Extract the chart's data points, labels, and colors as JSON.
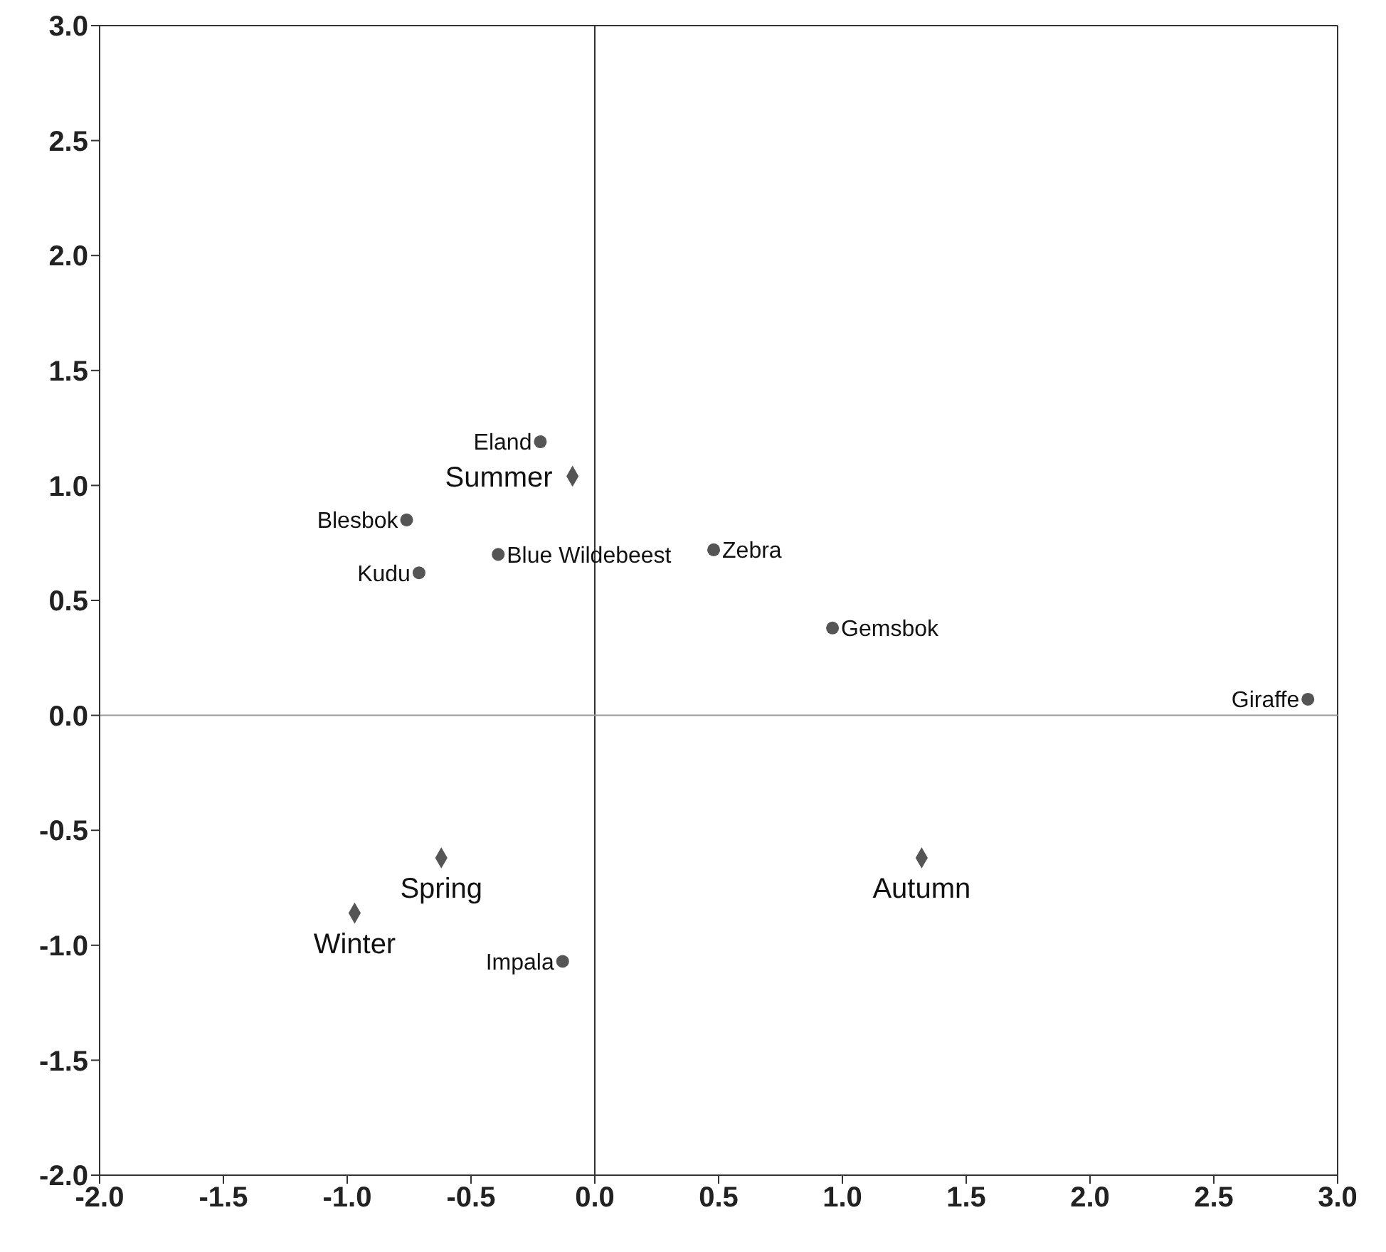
{
  "chart_data": {
    "type": "scatter",
    "xlim": [
      -2.0,
      3.0
    ],
    "ylim": [
      -2.0,
      3.0
    ],
    "xticks": [
      {
        "value": -2,
        "label": "-2.0"
      },
      {
        "value": -1.5,
        "label": "-1.5"
      },
      {
        "value": -1,
        "label": "-1.0"
      },
      {
        "value": -0.5,
        "label": "-0.5"
      },
      {
        "value": 0,
        "label": "0.0"
      },
      {
        "value": 0.5,
        "label": "0.5"
      },
      {
        "value": 1,
        "label": "1.0"
      },
      {
        "value": 1.5,
        "label": "1.5"
      },
      {
        "value": 2,
        "label": "2.0"
      },
      {
        "value": 2.5,
        "label": "2.5"
      },
      {
        "value": 3,
        "label": "3.0"
      }
    ],
    "yticks": [
      {
        "value": -2,
        "label": "-2.0"
      },
      {
        "value": -1.5,
        "label": "-1.5"
      },
      {
        "value": -1,
        "label": "-1.0"
      },
      {
        "value": -0.5,
        "label": "-0.5"
      },
      {
        "value": 0,
        "label": "0.0"
      },
      {
        "value": 0.5,
        "label": "0.5"
      },
      {
        "value": 1,
        "label": "1.0"
      },
      {
        "value": 1.5,
        "label": "1.5"
      },
      {
        "value": 2,
        "label": "2.0"
      },
      {
        "value": 2.5,
        "label": "2.5"
      },
      {
        "value": 3,
        "label": "3.0"
      }
    ],
    "grid": false,
    "legend": false,
    "series": [
      {
        "color": "#555555",
        "marker": "circle",
        "x": [
          -0.22,
          -0.76,
          -0.71,
          -0.39,
          0.48,
          0.96,
          2.88,
          -0.13
        ],
        "values": [
          1.19,
          0.85,
          0.62,
          0.7,
          0.72,
          0.38,
          0.07,
          -1.07
        ]
      },
      {
        "color": "#555555",
        "marker": "diamond",
        "x": [
          -0.09,
          -0.62,
          -0.97,
          1.32
        ],
        "values": [
          1.04,
          -0.62,
          -0.86,
          -0.62
        ]
      }
    ],
    "ref_lines": [
      {
        "axis": "x",
        "value": 0,
        "color": "#333333"
      },
      {
        "axis": "y",
        "value": 0,
        "color": "#999999"
      }
    ],
    "annotations": [
      {
        "text": "Eland",
        "x": -0.22,
        "y": 1.19
      },
      {
        "text": "Blesbok",
        "x": -0.76,
        "y": 0.85
      },
      {
        "text": "Kudu",
        "x": -0.71,
        "y": 0.62
      },
      {
        "text": "Blue Wildebeest",
        "x": -0.39,
        "y": 0.7
      },
      {
        "text": "Zebra",
        "x": 0.48,
        "y": 0.72
      },
      {
        "text": "Gemsbok",
        "x": 0.96,
        "y": 0.38
      },
      {
        "text": "Giraffe",
        "x": 2.88,
        "y": 0.07
      },
      {
        "text": "Impala",
        "x": -0.13,
        "y": -1.07
      },
      {
        "text": "Summer",
        "x": -0.09,
        "y": 1.04
      },
      {
        "text": "Spring",
        "x": -0.62,
        "y": -0.62
      },
      {
        "text": "Winter",
        "x": -0.97,
        "y": -0.86
      },
      {
        "text": "Autumn",
        "x": 1.32,
        "y": -0.62
      }
    ]
  }
}
